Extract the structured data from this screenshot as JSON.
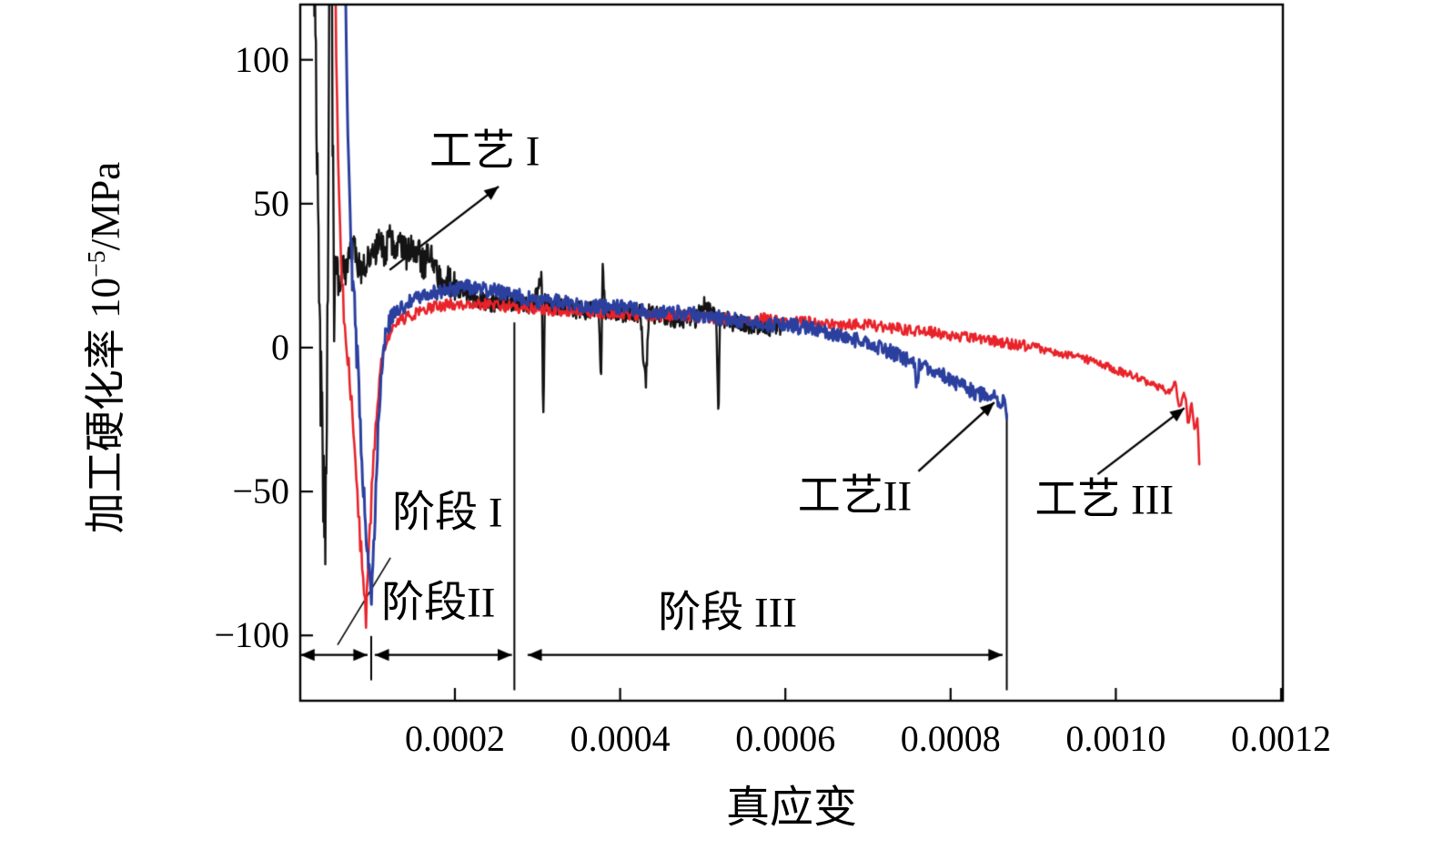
{
  "figure": {
    "background": "#ffffff"
  },
  "chart_data": {
    "type": "line",
    "title": "",
    "xlabel": "真应变",
    "ylabel": "加工硬化率 10⁻⁵/MPa",
    "ylabel_parts": {
      "pre": "加工硬化率 10",
      "sup": "−5",
      "post": "/MPa"
    },
    "grid": false,
    "legend_position": "none",
    "frame_color": "#000000",
    "xlim": [
      1.28e-05,
      0.0012022
    ],
    "ylim": [
      -122.7,
      119.2
    ],
    "xticks": {
      "values": [
        0.0002,
        0.0004,
        0.0006,
        0.0008,
        0.001,
        0.0012
      ],
      "labels": [
        "0.0002",
        "0.0004",
        "0.0006",
        "0.0008",
        "0.0010",
        "0.0012"
      ]
    },
    "yticks": {
      "values": [
        100,
        50,
        0,
        -50,
        -100
      ],
      "labels": [
        "100",
        "50",
        "0",
        "−50",
        "−100"
      ]
    },
    "noise_seed": 7,
    "series": [
      {
        "name": "工艺 I",
        "color": "#141414",
        "width": 2.4,
        "seed": 11,
        "noise": [
          {
            "x2": 5.6e-05,
            "amp": 22
          },
          {
            "x2": 0.0002,
            "amp": 5.5
          },
          {
            "x2": 0.00062,
            "amp": 3.2
          }
        ],
        "points": [
          [
            2.8e-05,
            160
          ],
          [
            3.4e-05,
            60
          ],
          [
            3.8e-05,
            -20
          ],
          [
            4.3e-05,
            -65
          ],
          [
            4.6e-05,
            10
          ],
          [
            4.8e-05,
            130
          ],
          [
            5e-05,
            160
          ],
          [
            5.2e-05,
            70
          ],
          [
            5.4e-05,
            15
          ],
          [
            5.7e-05,
            30
          ],
          [
            6e-05,
            18
          ],
          [
            6.4e-05,
            32
          ],
          [
            6.8e-05,
            24
          ],
          [
            7.2e-05,
            30
          ],
          [
            7.6e-05,
            36
          ],
          [
            8.2e-05,
            30
          ],
          [
            8.8e-05,
            26
          ],
          [
            9.5e-05,
            33
          ],
          [
            0.000102,
            30
          ],
          [
            0.000108,
            38
          ],
          [
            0.000115,
            33
          ],
          [
            0.000122,
            38
          ],
          [
            0.000128,
            32
          ],
          [
            0.000135,
            37
          ],
          [
            0.000142,
            32
          ],
          [
            0.000148,
            36
          ],
          [
            0.000155,
            33
          ],
          [
            0.000162,
            29
          ],
          [
            0.00017,
            32
          ],
          [
            0.000178,
            26
          ],
          [
            0.000186,
            24
          ],
          [
            0.000194,
            23
          ],
          [
            0.000202,
            21
          ],
          [
            0.000212,
            19
          ],
          [
            0.000224,
            17
          ],
          [
            0.000238,
            16
          ],
          [
            0.000252,
            15
          ],
          [
            0.000266,
            16
          ],
          [
            0.00028,
            15
          ],
          [
            0.000295,
            15
          ],
          [
            0.000305,
            24
          ],
          [
            0.000307,
            -26
          ],
          [
            0.000309,
            16
          ],
          [
            0.00032,
            14
          ],
          [
            0.000334,
            14
          ],
          [
            0.000348,
            13
          ],
          [
            0.000362,
            13
          ],
          [
            0.000374,
            13
          ],
          [
            0.000377,
            -12
          ],
          [
            0.000379,
            29
          ],
          [
            0.000382,
            13
          ],
          [
            0.000394,
            12
          ],
          [
            0.000408,
            12
          ],
          [
            0.000424,
            12
          ],
          [
            0.000431,
            -13
          ],
          [
            0.000435,
            12
          ],
          [
            0.000448,
            11
          ],
          [
            0.000463,
            10
          ],
          [
            0.000478,
            10
          ],
          [
            0.000492,
            10
          ],
          [
            0.000503,
            15
          ],
          [
            0.000516,
            10
          ],
          [
            0.000519,
            -23
          ],
          [
            0.000521,
            10
          ],
          [
            0.000534,
            9
          ],
          [
            0.000548,
            8
          ],
          [
            0.000562,
            8
          ],
          [
            0.000578,
            7
          ],
          [
            0.000595,
            7
          ]
        ]
      },
      {
        "name": "工艺 III",
        "color": "#e8232a",
        "width": 2.6,
        "seed": 33,
        "noise": [
          {
            "x2": 0.00011,
            "amp": 5
          },
          {
            "x2": 0.0009,
            "amp": 2.0
          },
          {
            "x2": 0.00112,
            "amp": 1.4
          }
        ],
        "points": [
          [
            5.4e-05,
            160
          ],
          [
            5.7e-05,
            90
          ],
          [
            6e-05,
            48
          ],
          [
            6.5e-05,
            15
          ],
          [
            7.1e-05,
            -5
          ],
          [
            7.7e-05,
            -30
          ],
          [
            8.3e-05,
            -55
          ],
          [
            8.8e-05,
            -78
          ],
          [
            9.2e-05,
            -95
          ],
          [
            9.6e-05,
            -72
          ],
          [
            0.000101,
            -42
          ],
          [
            0.000106,
            -18
          ],
          [
            0.000111,
            -4
          ],
          [
            0.000117,
            3
          ],
          [
            0.000124,
            6
          ],
          [
            0.000133,
            9
          ],
          [
            0.000143,
            11
          ],
          [
            0.000153,
            12
          ],
          [
            0.000164,
            13
          ],
          [
            0.000175,
            14
          ],
          [
            0.00019,
            15
          ],
          [
            0.000208,
            15
          ],
          [
            0.000228,
            15
          ],
          [
            0.000248,
            15
          ],
          [
            0.000268,
            14
          ],
          [
            0.000288,
            14
          ],
          [
            0.000308,
            13
          ],
          [
            0.00033,
            13
          ],
          [
            0.000352,
            13
          ],
          [
            0.000376,
            12
          ],
          [
            0.000402,
            12
          ],
          [
            0.00043,
            11
          ],
          [
            0.000458,
            11
          ],
          [
            0.000486,
            11
          ],
          [
            0.000515,
            10
          ],
          [
            0.000544,
            10
          ],
          [
            0.000574,
            10
          ],
          [
            0.000604,
            9
          ],
          [
            0.000634,
            9
          ],
          [
            0.000664,
            8
          ],
          [
            0.000694,
            8
          ],
          [
            0.000724,
            7
          ],
          [
            0.000754,
            6
          ],
          [
            0.000784,
            5
          ],
          [
            0.000814,
            4
          ],
          [
            0.000844,
            3
          ],
          [
            0.000874,
            1
          ],
          [
            0.000904,
            0
          ],
          [
            0.000934,
            -2
          ],
          [
            0.000964,
            -4
          ],
          [
            0.000994,
            -7
          ],
          [
            0.001022,
            -10
          ],
          [
            0.001048,
            -13
          ],
          [
            0.001063,
            -15
          ],
          [
            0.001072,
            -13
          ],
          [
            0.001078,
            -21
          ],
          [
            0.001083,
            -15
          ],
          [
            0.001088,
            -27
          ],
          [
            0.001092,
            -19
          ],
          [
            0.001096,
            -29
          ],
          [
            0.001099,
            -23
          ],
          [
            0.001101,
            -40
          ]
        ]
      },
      {
        "name": "工艺II",
        "color": "#2b3f9f",
        "width": 3.0,
        "seed": 22,
        "noise": [
          {
            "x2": 9.5e-05,
            "amp": 7
          },
          {
            "x2": 0.00013,
            "amp": 4
          },
          {
            "x2": 0.00088,
            "amp": 2.6
          }
        ],
        "points": [
          [
            6.6e-05,
            160
          ],
          [
            7e-05,
            80
          ],
          [
            7.6e-05,
            25
          ],
          [
            8.2e-05,
            -5
          ],
          [
            8.8e-05,
            -40
          ],
          [
            9.4e-05,
            -70
          ],
          [
            9.9e-05,
            -88
          ],
          [
            0.000103,
            -60
          ],
          [
            0.000107,
            -28
          ],
          [
            0.000111,
            -8
          ],
          [
            0.000116,
            5
          ],
          [
            0.000123,
            10
          ],
          [
            0.000132,
            13
          ],
          [
            0.000142,
            15
          ],
          [
            0.000152,
            17
          ],
          [
            0.000163,
            18
          ],
          [
            0.000174,
            19
          ],
          [
            0.000186,
            20
          ],
          [
            0.0002,
            20
          ],
          [
            0.000214,
            21
          ],
          [
            0.000228,
            20
          ],
          [
            0.000243,
            20
          ],
          [
            0.000258,
            19
          ],
          [
            0.000274,
            18
          ],
          [
            0.00029,
            17
          ],
          [
            0.000308,
            16
          ],
          [
            0.000328,
            16
          ],
          [
            0.000348,
            15
          ],
          [
            0.000372,
            14
          ],
          [
            0.000398,
            14
          ],
          [
            0.000424,
            13
          ],
          [
            0.00045,
            12
          ],
          [
            0.000476,
            12
          ],
          [
            0.000502,
            11
          ],
          [
            0.000528,
            10
          ],
          [
            0.000554,
            9
          ],
          [
            0.000578,
            8
          ],
          [
            0.0006,
            8
          ],
          [
            0.000622,
            7
          ],
          [
            0.000643,
            6
          ],
          [
            0.000663,
            4
          ],
          [
            0.000682,
            3
          ],
          [
            0.0007,
            1
          ],
          [
            0.000716,
            0
          ],
          [
            0.000731,
            -2
          ],
          [
            0.000745,
            -4
          ],
          [
            0.000756,
            -6
          ],
          [
            0.000759,
            -13
          ],
          [
            0.000762,
            -6
          ],
          [
            0.000774,
            -7
          ],
          [
            0.000788,
            -9
          ],
          [
            0.000803,
            -12
          ],
          [
            0.000818,
            -14
          ],
          [
            0.000833,
            -16
          ],
          [
            0.000847,
            -17
          ],
          [
            0.000858,
            -18
          ],
          [
            0.000865,
            -19
          ],
          [
            0.000868,
            -23
          ]
        ]
      }
    ],
    "annotations": [
      {
        "id": "process-1-label",
        "text": "工艺 I",
        "x": 0.000236,
        "y": 68,
        "arrow": {
          "from": [
            0.000121,
            27
          ],
          "to": [
            0.000253,
            56
          ]
        }
      },
      {
        "id": "process-2-label",
        "text": "工艺II",
        "x": 0.000684,
        "y": -52,
        "arrow": {
          "from": [
            0.000761,
            -43
          ],
          "to": [
            0.000853,
            -19
          ]
        }
      },
      {
        "id": "process-3-label",
        "text": "工艺 III",
        "x": 0.000986,
        "y": -53,
        "arrow": {
          "from": [
            0.000978,
            -44
          ],
          "to": [
            0.001083,
            -21
          ]
        }
      },
      {
        "id": "stage-1-label",
        "text": "阶段 I",
        "x": 0.000191,
        "y": -57.5
      },
      {
        "id": "stage-2-label",
        "text": "阶段II",
        "x": 0.00018,
        "y": -88.8
      },
      {
        "id": "stage-3-label",
        "text": "阶段 III",
        "x": 0.00053,
        "y": -92.3
      }
    ],
    "stage_spans": [
      {
        "x1": 1.3e-05,
        "x2": 9.43e-05,
        "y": -106.8
      },
      {
        "x1": 0.000103,
        "x2": 0.000269,
        "y": -106.8
      },
      {
        "x1": 0.000288,
        "x2": 0.000863,
        "y": -106.8
      }
    ],
    "divider_lines": [
      {
        "x": 9.87e-05,
        "y1": -100.2,
        "y2": -115.6
      },
      {
        "x": 0.000272,
        "y1": 8.8,
        "y2": -119.1
      },
      {
        "x": 0.000868,
        "y1": -22.7,
        "y2": -119.1
      }
    ],
    "leader_line": {
      "from": [
        5.8e-05,
        -103.3
      ],
      "to": [
        0.000122,
        -73.0
      ]
    }
  }
}
